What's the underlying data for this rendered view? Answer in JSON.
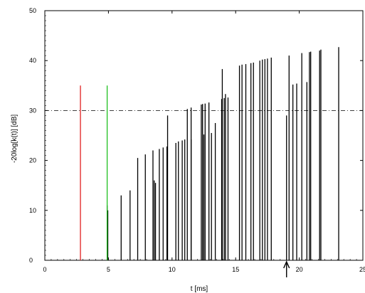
{
  "chart_data": {
    "type": "bar",
    "xlabel": "t  [ms]",
    "ylabel": "-20log[k(t)]  [dB]",
    "xlim": [
      0,
      25
    ],
    "ylim": [
      0,
      50
    ],
    "xticks": [
      "0",
      "5",
      "10",
      "15",
      "20",
      "25"
    ],
    "yticks": [
      "0",
      "10",
      "20",
      "30",
      "40",
      "50"
    ],
    "reference_line": {
      "y": 30,
      "style": "dash-dot"
    },
    "markers": [
      {
        "x": 2.8,
        "height": 35,
        "color": "#e02020"
      },
      {
        "x": 4.9,
        "height": 35,
        "color": "#20c020"
      }
    ],
    "arrow_x": 19.0,
    "series": [
      {
        "values": [
          [
            4.9,
            11
          ],
          [
            4.95,
            10
          ],
          [
            6.0,
            13
          ],
          [
            6.7,
            14
          ],
          [
            7.3,
            20.5
          ],
          [
            7.9,
            21.2
          ],
          [
            8.5,
            22
          ],
          [
            8.6,
            16
          ],
          [
            8.7,
            15.5
          ],
          [
            9.0,
            22.3
          ],
          [
            9.3,
            22.6
          ],
          [
            9.6,
            22.8
          ],
          [
            9.65,
            29
          ],
          [
            10.3,
            23.5
          ],
          [
            10.5,
            23.8
          ],
          [
            10.8,
            24
          ],
          [
            11.0,
            24.2
          ],
          [
            11.2,
            30.3
          ],
          [
            11.5,
            30.6
          ],
          [
            11.5,
            24.2
          ],
          [
            12.3,
            31.2
          ],
          [
            12.4,
            31.3
          ],
          [
            12.5,
            25.2
          ],
          [
            12.6,
            31.4
          ],
          [
            12.9,
            31.6
          ],
          [
            13.1,
            25.5
          ],
          [
            13.4,
            27.5
          ],
          [
            13.9,
            32.3
          ],
          [
            13.95,
            38.3
          ],
          [
            14.1,
            32.5
          ],
          [
            14.2,
            33.3
          ],
          [
            14.4,
            32.6
          ],
          [
            15.3,
            39
          ],
          [
            15.5,
            39.2
          ],
          [
            15.8,
            39.3
          ],
          [
            16.2,
            39.5
          ],
          [
            16.4,
            39.6
          ],
          [
            16.9,
            40
          ],
          [
            17.1,
            40.2
          ],
          [
            17.3,
            40.3
          ],
          [
            17.5,
            40.4
          ],
          [
            17.8,
            40.6
          ],
          [
            19.0,
            29
          ],
          [
            19.2,
            41
          ],
          [
            19.5,
            35.2
          ],
          [
            19.8,
            35.4
          ],
          [
            20.2,
            41.5
          ],
          [
            20.6,
            35.7
          ],
          [
            20.8,
            41.7
          ],
          [
            20.9,
            41.8
          ],
          [
            21.6,
            42
          ],
          [
            21.7,
            42.2
          ],
          [
            23.1,
            42.7
          ]
        ],
        "color": "#000000"
      }
    ]
  }
}
